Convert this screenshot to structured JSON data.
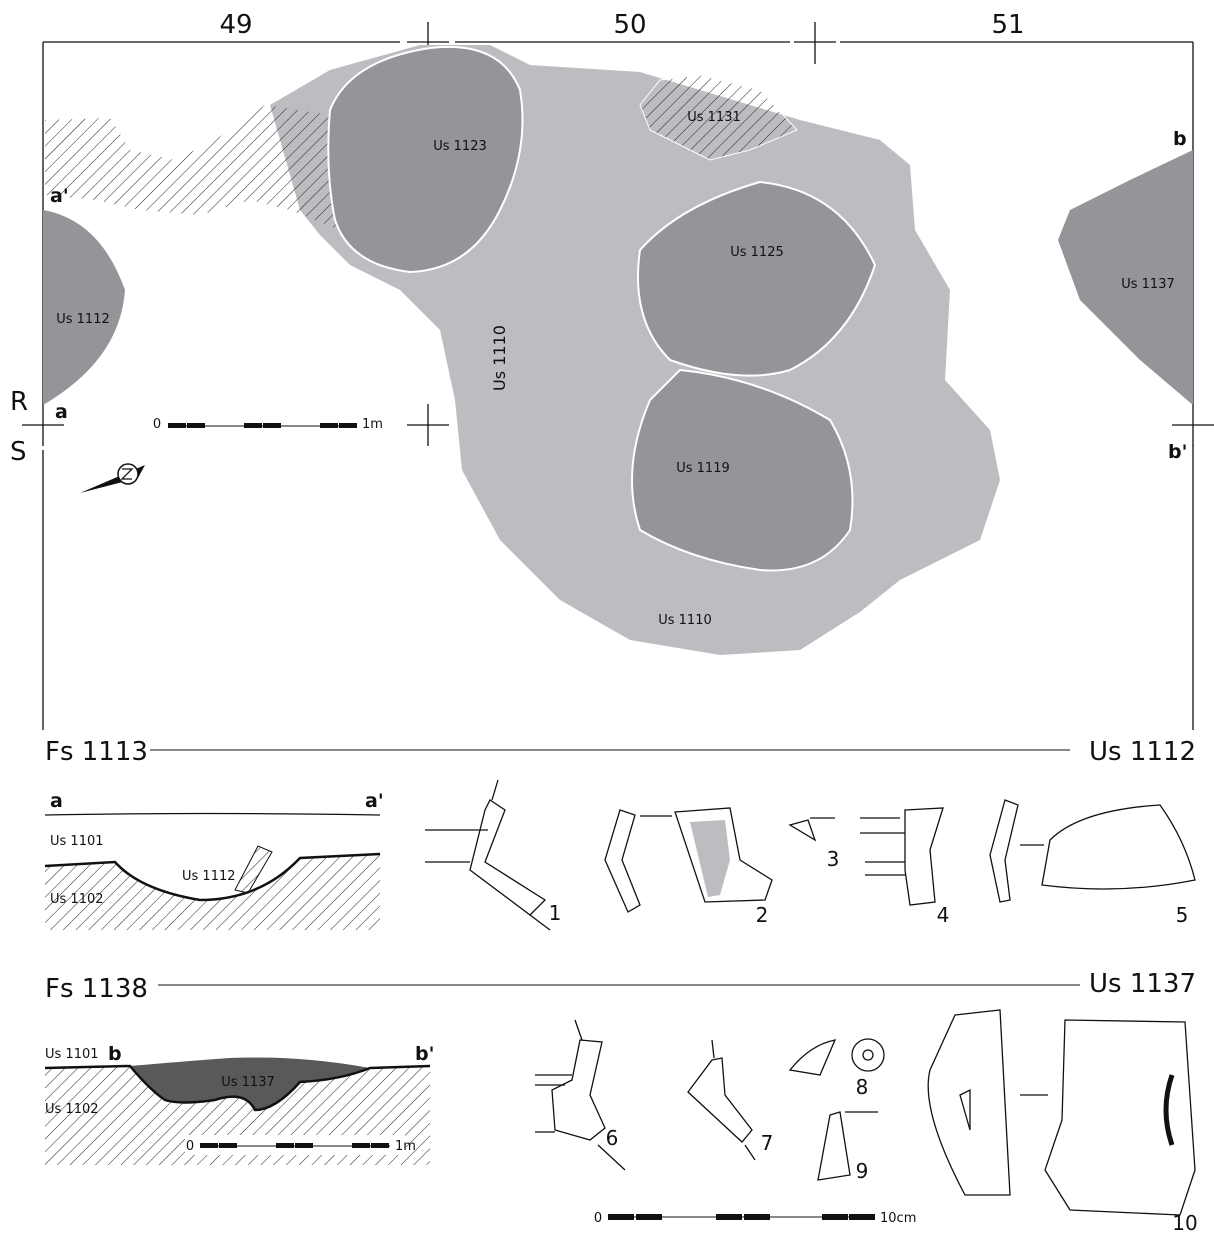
{
  "plan": {
    "grid_labels": [
      "49",
      "50",
      "51"
    ],
    "row_labels": [
      "R",
      "S"
    ],
    "section_points": [
      "a",
      "a'",
      "b",
      "b'"
    ],
    "units": [
      "Us 1123",
      "Us 1131",
      "Us 1125",
      "Us 1137",
      "Us 1112",
      "Us 1110",
      "Us 1119",
      "Us 1110"
    ],
    "scale": [
      "0",
      "1m"
    ]
  },
  "sections": [
    {
      "feature": "Fs 1113",
      "unit": "Us 1112",
      "points": [
        "a",
        "a'"
      ],
      "layers": [
        "Us 1101",
        "Us 1102",
        "Us 1112"
      ],
      "finds": [
        "1",
        "2",
        "3",
        "4",
        "5"
      ]
    },
    {
      "feature": "Fs 1138",
      "unit": "Us 1137",
      "points": [
        "b",
        "b'"
      ],
      "layers": [
        "Us 1101",
        "Us 1102",
        "Us 1137"
      ],
      "scale": [
        "0",
        "1m"
      ],
      "finds": [
        "6",
        "7",
        "8",
        "9",
        "10"
      ]
    }
  ],
  "finds_scale": [
    "0",
    "10cm"
  ]
}
